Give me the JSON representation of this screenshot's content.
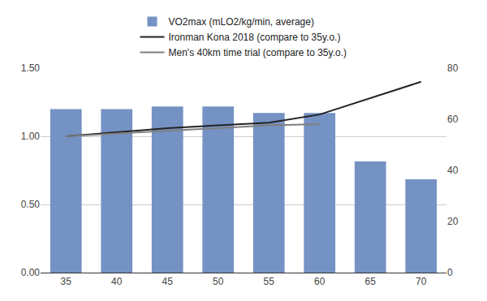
{
  "chart_data": {
    "type": "bar",
    "categories": [
      "35",
      "40",
      "45",
      "50",
      "55",
      "60",
      "65",
      "70"
    ],
    "series": [
      {
        "name": "VO2max (mLO2/kg/min, average)",
        "type": "bar",
        "color": "#7592c4",
        "axis": "y2",
        "values": [
          64,
          64,
          65,
          65,
          62.5,
          62.5,
          43.5,
          36.5
        ]
      },
      {
        "name": "Ironman Kona 2018 (compare to 35y.o.)",
        "type": "line",
        "color": "#222222",
        "values": [
          1.0,
          1.03,
          1.06,
          1.08,
          1.1,
          1.16,
          1.28,
          1.4
        ]
      },
      {
        "name": "Men's 40km time trial (compare to 35y.o.)",
        "type": "line",
        "color": "#7f7f7f",
        "values": [
          1.0,
          1.02,
          1.04,
          1.06,
          1.08,
          1.09,
          null,
          null
        ]
      }
    ],
    "ylim": [
      0,
      1.5
    ],
    "yticks": [
      {
        "value": 0,
        "label": "0.00"
      },
      {
        "value": 0.5,
        "label": "0.50"
      },
      {
        "value": 1,
        "label": "1.00"
      },
      {
        "value": 1.5,
        "label": "1.50"
      }
    ],
    "y2lim": [
      0,
      80
    ],
    "y2ticks": [
      0,
      20,
      40,
      60,
      80
    ],
    "grid": true,
    "legend": "top"
  }
}
